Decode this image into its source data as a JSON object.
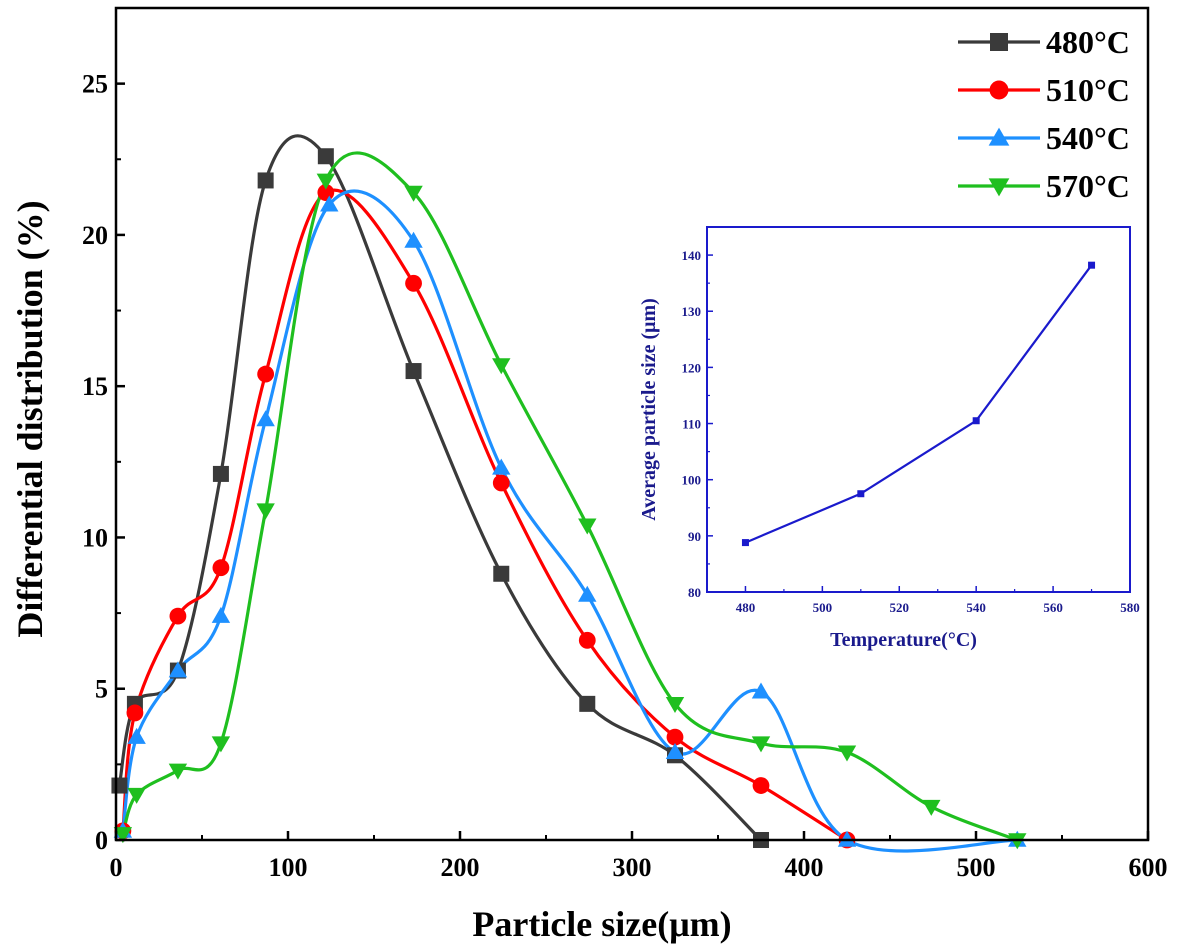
{
  "chart_data": [
    {
      "type": "line",
      "title": "",
      "xlabel": "Particle size(μm)",
      "ylabel": "Differential distribution (%)",
      "xlim": [
        0,
        600
      ],
      "ylim": [
        0,
        27.5
      ],
      "x_ticks": [
        "0",
        "100",
        "200",
        "300",
        "400",
        "500",
        "600"
      ],
      "y_ticks": [
        "0",
        "5",
        "10",
        "15",
        "20",
        "25"
      ],
      "legend_position": "top-right",
      "grid": false,
      "series": [
        {
          "name": "480°C",
          "color": "#3a3a3a",
          "marker": "square",
          "x": [
            2,
            11,
            36,
            61,
            87,
            122,
            173,
            224,
            274,
            325,
            375
          ],
          "y": [
            1.8,
            4.5,
            5.6,
            12.1,
            21.8,
            22.6,
            15.5,
            8.8,
            4.5,
            2.8,
            0.0
          ]
        },
        {
          "name": "510°C",
          "color": "#ff0000",
          "marker": "circle",
          "x": [
            4,
            11,
            36,
            61,
            87,
            122,
            173,
            224,
            274,
            325,
            375,
            425
          ],
          "y": [
            0.3,
            4.2,
            7.4,
            9.0,
            15.4,
            21.4,
            18.4,
            11.8,
            6.6,
            3.4,
            1.8,
            0.0
          ]
        },
        {
          "name": "540°C",
          "color": "#1e90ff",
          "marker": "triangle-up",
          "x": [
            4,
            12,
            36,
            61,
            87,
            124,
            173,
            224,
            274,
            325,
            375,
            425,
            524
          ],
          "y": [
            0.3,
            3.4,
            5.6,
            7.4,
            13.9,
            21.0,
            19.8,
            12.3,
            8.1,
            2.9,
            4.9,
            0.0,
            0.0
          ]
        },
        {
          "name": "570°C",
          "color": "#1fbf1f",
          "marker": "triangle-down",
          "x": [
            4,
            12,
            36,
            61,
            87,
            122,
            173,
            224,
            274,
            325,
            375,
            425,
            474,
            524
          ],
          "y": [
            0.2,
            1.5,
            2.3,
            3.2,
            10.9,
            21.8,
            21.4,
            15.7,
            10.4,
            4.5,
            3.2,
            2.9,
            1.1,
            0.0
          ]
        }
      ]
    },
    {
      "type": "line",
      "title": "",
      "xlabel": "Temperature(°C)",
      "ylabel": "Average particle size (μm)",
      "xlim": [
        470,
        580
      ],
      "ylim": [
        80,
        145
      ],
      "x_ticks": [
        "480",
        "500",
        "520",
        "540",
        "560",
        "580"
      ],
      "y_ticks": [
        "80",
        "90",
        "100",
        "110",
        "120",
        "130",
        "140"
      ],
      "grid": false,
      "series": [
        {
          "name": "Average particle size",
          "color": "#1a1acc",
          "marker": "square",
          "x": [
            480,
            510,
            540,
            570
          ],
          "y": [
            88.8,
            97.5,
            110.5,
            138.2
          ]
        }
      ]
    }
  ]
}
